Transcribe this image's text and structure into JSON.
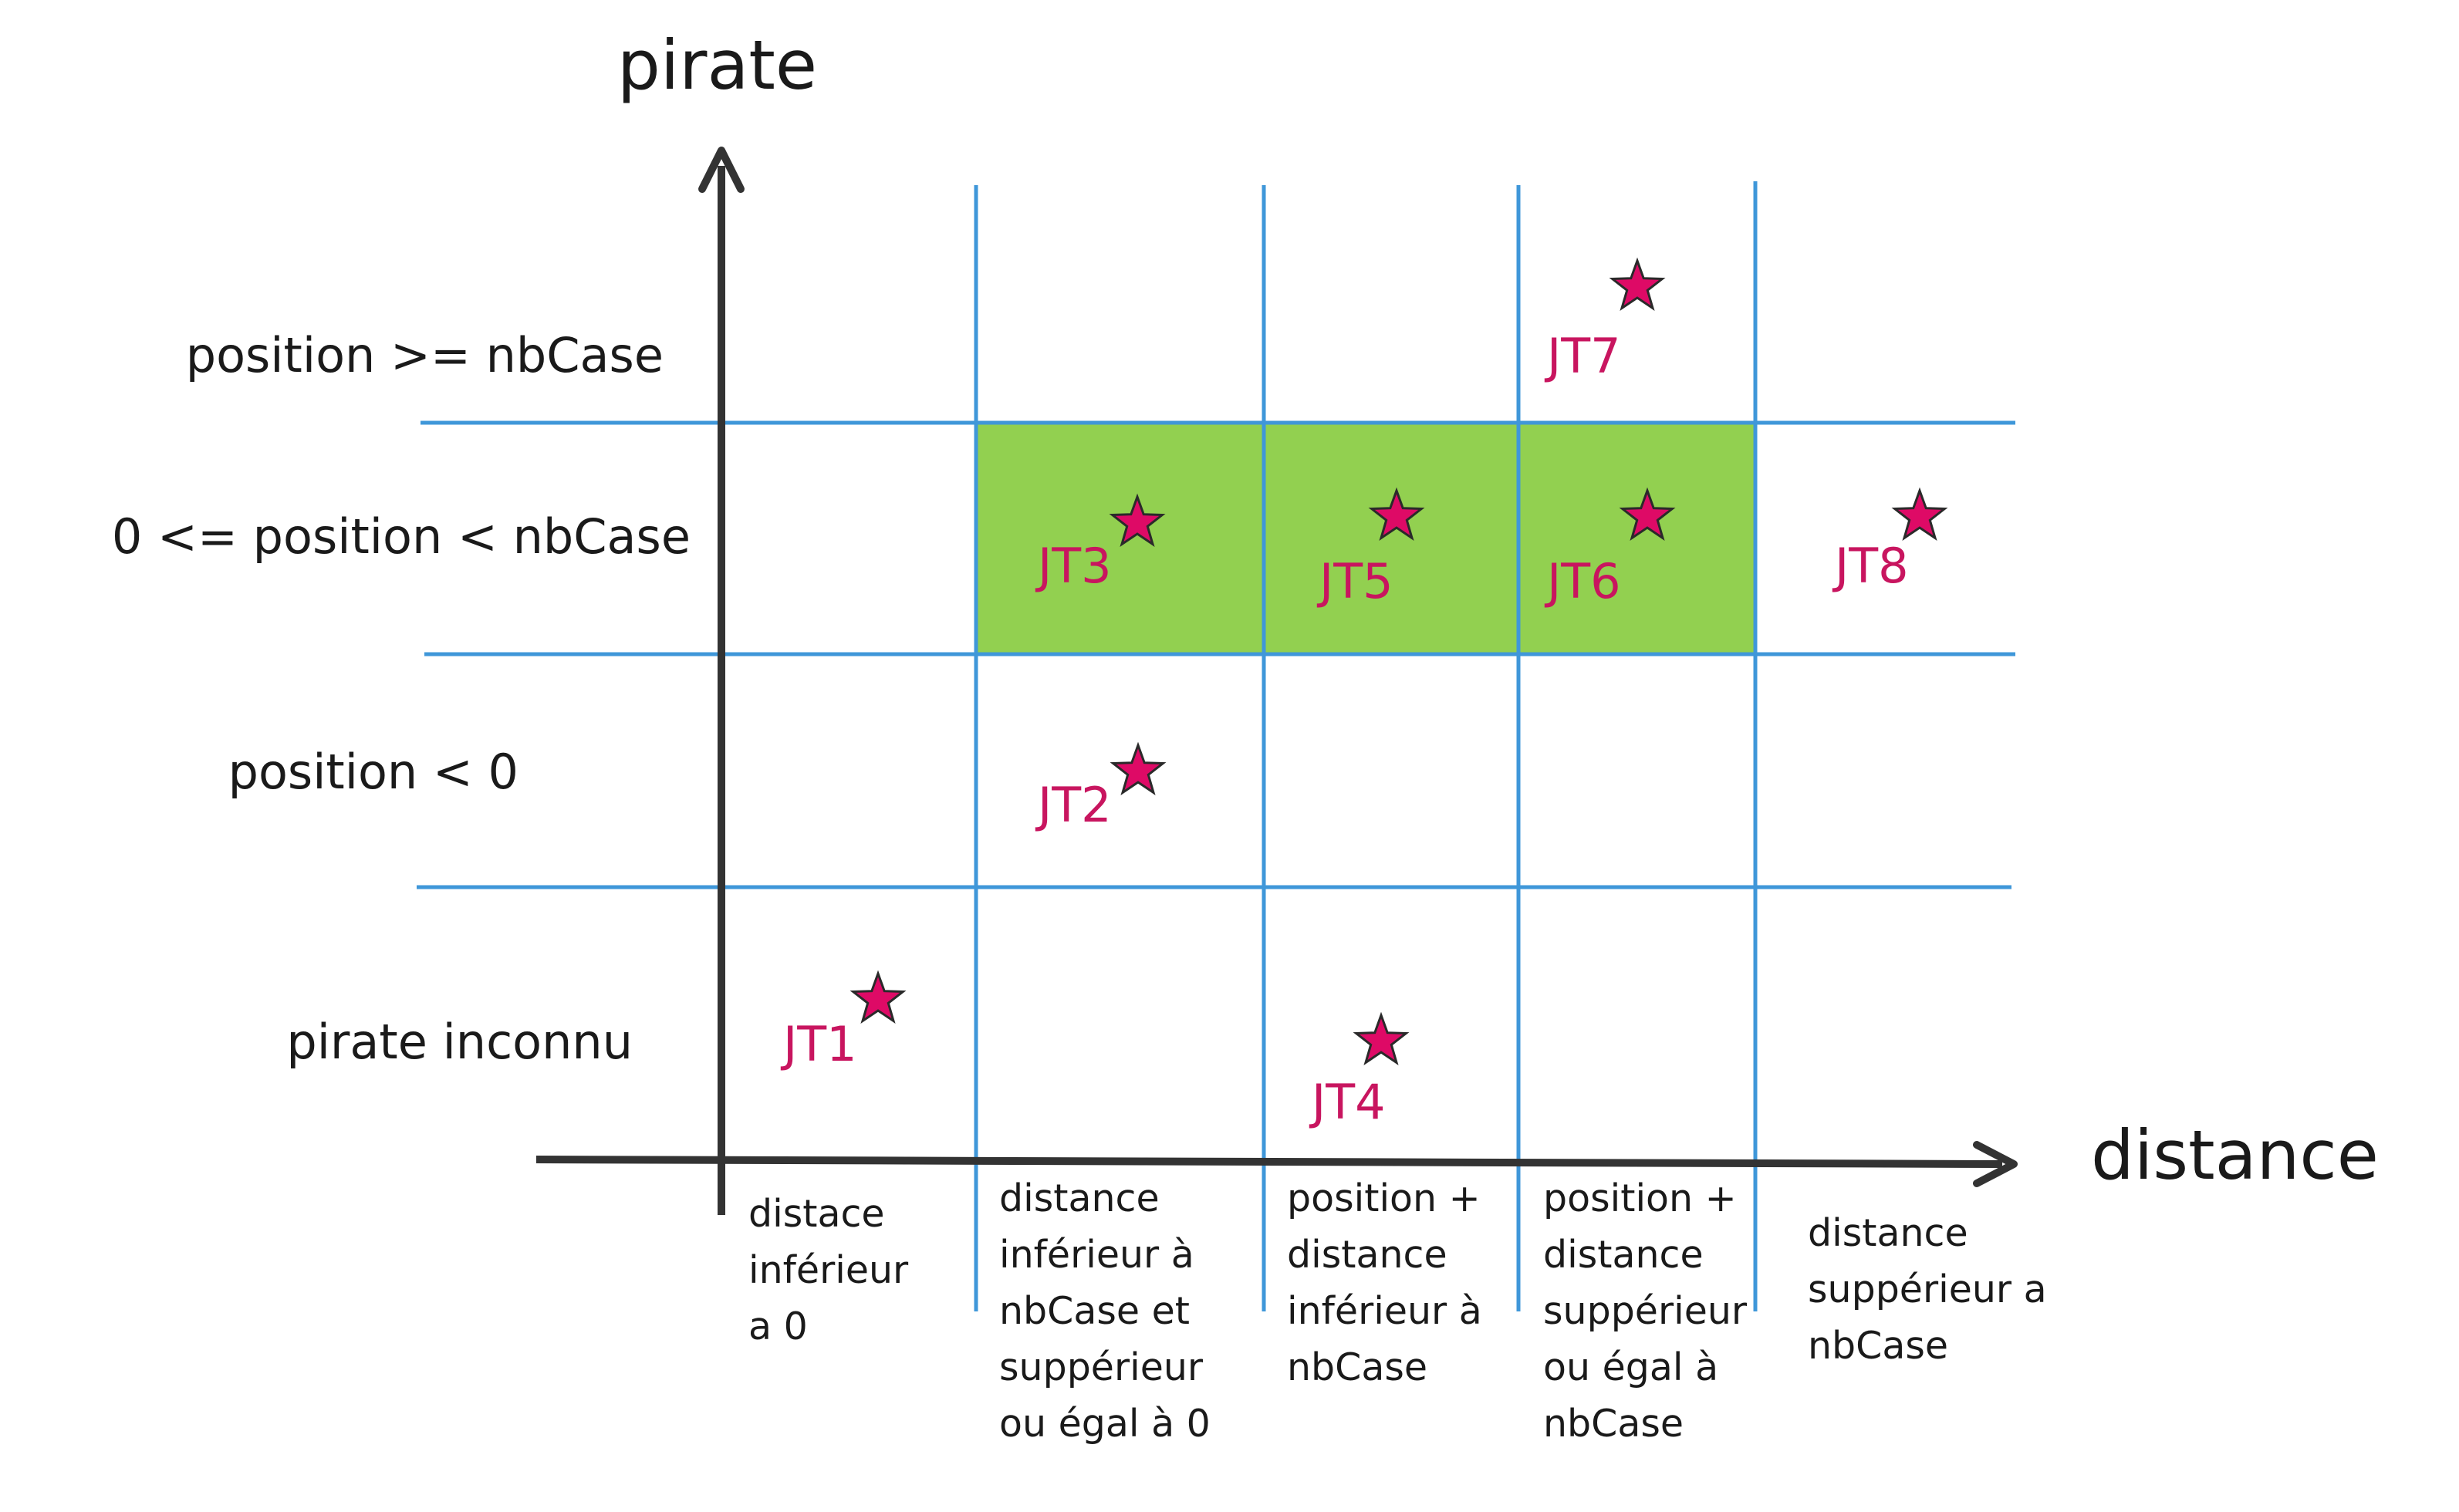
{
  "axes": {
    "y_title": "pirate",
    "x_title": "distance"
  },
  "rows": [
    "position >= nbCase",
    "0 <= position < nbCase",
    "position < 0",
    "pirate inconnu"
  ],
  "columns": [
    [
      "distace",
      "inférieur",
      "a 0"
    ],
    [
      "distance",
      "inférieur à",
      "nbCase et",
      "suppérieur",
      "ou égal à 0"
    ],
    [
      "position +",
      "distance",
      "inférieur à",
      "nbCase"
    ],
    [
      "position +",
      "distance",
      "suppérieur",
      "ou égal à",
      "nbCase"
    ],
    [
      "distance",
      "suppérieur a",
      "nbCase"
    ]
  ],
  "test_cases": [
    {
      "label": "JT1",
      "row": 3,
      "col": 0
    },
    {
      "label": "JT2",
      "row": 2,
      "col": 1
    },
    {
      "label": "JT3",
      "row": 1,
      "col": 1
    },
    {
      "label": "JT4",
      "row": 3,
      "col": 2
    },
    {
      "label": "JT5",
      "row": 1,
      "col": 2
    },
    {
      "label": "JT6",
      "row": 1,
      "col": 3
    },
    {
      "label": "JT7",
      "row": 0,
      "col": 3
    },
    {
      "label": "JT8",
      "row": 1,
      "col": 4
    }
  ],
  "highlight": {
    "row": 1,
    "col_from": 1,
    "col_to": 3,
    "color": "#92d050"
  },
  "colors": {
    "grid": "#3f97d9",
    "axis": "#333333",
    "star": "#de0a66",
    "test_label": "#c8155f"
  }
}
